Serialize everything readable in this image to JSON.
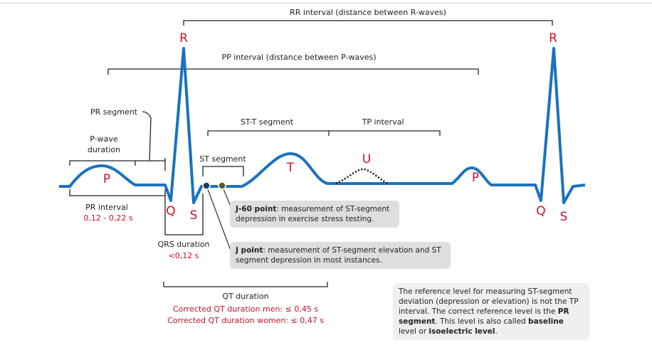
{
  "intervals": {
    "rr": "RR interval (distance between R-waves)",
    "pp": "PP interval (distance between P-waves)"
  },
  "wave_labels": [
    "R",
    "R",
    "P",
    "P",
    "Q",
    "Q",
    "S",
    "S",
    "T",
    "U"
  ],
  "segments": {
    "pr_segment": "PR segment",
    "p_wave_duration": [
      "P-wave",
      "duration"
    ],
    "st_t_segment": "ST-T segment",
    "tp_interval": "TP interval",
    "st_segment": "ST segment"
  },
  "pr_interval": {
    "label": "PR interval",
    "range": "0,12 - 0,22 s"
  },
  "qrs_duration": {
    "label": "QRS duration",
    "range": "<0,12 s"
  },
  "qt_duration": {
    "label": "QT duration",
    "men": "Corrected QT duration men: ≤ 0,45 s",
    "women": "Corrected QT duration women: ≤ 0,47 s"
  },
  "callouts": [
    {
      "parts": [
        {
          "text": "J-60 point",
          "bold": true
        },
        {
          "text": ": measurement of ST-segment depression in exercise stress testing."
        }
      ]
    },
    {
      "parts": [
        {
          "text": "J point",
          "bold": true
        },
        {
          "text": ": measurement of ST-segment elevation and ST segment depression in most instances."
        }
      ]
    }
  ],
  "note": {
    "parts": [
      {
        "text": "The reference level for measuring ST-segment deviation (depression or elevation) is not the TP interval. The correct reference level is the "
      },
      {
        "text": "PR segment",
        "bold": true
      },
      {
        "text": ". This level is also called "
      },
      {
        "text": "baseline",
        "bold": true
      },
      {
        "text": " level or "
      },
      {
        "text": "isoelectric level",
        "bold": true
      },
      {
        "text": "."
      }
    ]
  }
}
